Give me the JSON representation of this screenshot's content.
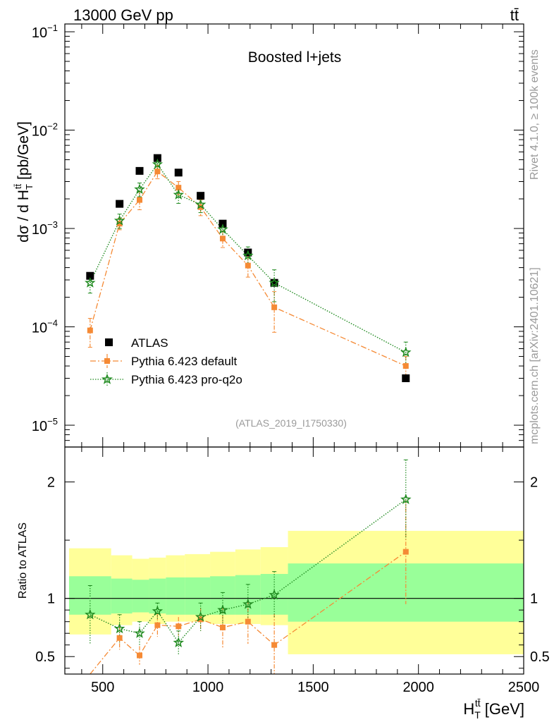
{
  "header": {
    "left": "13000 GeV pp",
    "right": "tt̄"
  },
  "side_labels": {
    "rivet": "Rivet 4.1.0, ≥ 100k events",
    "mcplots": "mcplots.cern.ch [arXiv:2401.10621]"
  },
  "chart_data": [
    {
      "name": "main",
      "type": "scatter",
      "title": "Boosted l+jets",
      "reference": "(ATLAS_2019_I1750330)",
      "ylabel": "dσ / d H_T^{tt̄} [pb/GeV]",
      "yscale": "log",
      "ylim": [
        6e-06,
        0.12
      ],
      "xlim": [
        320,
        2500
      ],
      "yticks": [
        {
          "value": 1e-05,
          "base": "10",
          "exp": "−5"
        },
        {
          "value": 0.0001,
          "base": "10",
          "exp": "−4"
        },
        {
          "value": 0.001,
          "base": "10",
          "exp": "−3"
        },
        {
          "value": 0.01,
          "base": "10",
          "exp": "−2"
        },
        {
          "value": 0.1,
          "base": "10",
          "exp": "−1"
        }
      ],
      "x": [
        440,
        580,
        675,
        760,
        860,
        965,
        1070,
        1190,
        1315,
        1940
      ],
      "series": [
        {
          "name": "ATLAS",
          "color": "#000000",
          "values": [
            0.00033,
            0.00178,
            0.00385,
            0.0052,
            0.0037,
            0.00215,
            0.00112,
            0.00057,
            0.00028,
            3e-05
          ]
        },
        {
          "name": "Pythia 6.423 default",
          "color": "#f58a35",
          "values": [
            9.2e-05,
            0.00112,
            0.00195,
            0.0038,
            0.0026,
            0.00165,
            0.00079,
            0.00042,
            0.000158,
            4e-05
          ],
          "errors": [
            3e-05,
            0.00015,
            0.0004,
            0.0006,
            0.0004,
            0.0003,
            0.00015,
            0.0001,
            7e-05,
            1e-05
          ]
        },
        {
          "name": "Pythia 6.423 pro-q2o",
          "color": "#1f8a1f",
          "values": [
            0.00028,
            0.0012,
            0.0025,
            0.0045,
            0.0022,
            0.00175,
            0.00098,
            0.00053,
            0.00028,
            5.5e-05
          ],
          "errors": [
            6e-05,
            0.0002,
            0.0004,
            0.0007,
            0.0004,
            0.0003,
            0.0002,
            0.00012,
            0.0001,
            1.5e-05
          ]
        }
      ]
    },
    {
      "name": "ratio",
      "type": "scatter",
      "ylabel": "Ratio to ATLAS",
      "xlabel": "H_T^{tt̄} [GeV]",
      "ylim": [
        0.35,
        2.3
      ],
      "xlim": [
        320,
        2500
      ],
      "yticks": [
        0.5,
        1,
        2
      ],
      "xticks": [
        500,
        1000,
        1500,
        2000,
        2500
      ],
      "bands": {
        "edges": [
          340,
          540,
          640,
          720,
          800,
          890,
          1010,
          1130,
          1250,
          1380,
          2500
        ],
        "yellow_low": [
          0.69,
          0.77,
          0.8,
          0.78,
          0.8,
          0.8,
          0.78,
          0.78,
          0.77,
          0.52
        ],
        "yellow_high": [
          1.43,
          1.37,
          1.34,
          1.35,
          1.37,
          1.38,
          1.4,
          1.42,
          1.44,
          1.58
        ],
        "green_low": [
          0.86,
          0.87,
          0.88,
          0.87,
          0.86,
          0.86,
          0.86,
          0.86,
          0.86,
          0.8
        ],
        "green_high": [
          1.19,
          1.17,
          1.16,
          1.17,
          1.18,
          1.18,
          1.19,
          1.2,
          1.21,
          1.3
        ]
      },
      "x": [
        440,
        580,
        675,
        760,
        860,
        965,
        1070,
        1190,
        1315,
        1940
      ],
      "series": [
        {
          "name": "Pythia 6.423 default",
          "color": "#f58a35",
          "values": [
            0.27,
            0.66,
            0.51,
            0.77,
            0.76,
            0.82,
            0.75,
            0.8,
            0.6,
            1.4
          ],
          "errors": [
            0.08,
            0.1,
            0.08,
            0.1,
            0.08,
            0.1,
            0.18,
            0.19,
            0.27,
            0.45
          ]
        },
        {
          "name": "Pythia 6.423 pro-q2o",
          "color": "#1f8a1f",
          "values": [
            0.86,
            0.74,
            0.7,
            0.89,
            0.62,
            0.84,
            0.9,
            0.95,
            1.03,
            1.85
          ],
          "errors": [
            0.25,
            0.12,
            0.1,
            0.07,
            0.1,
            0.12,
            0.15,
            0.17,
            0.2,
            0.34
          ]
        }
      ]
    }
  ]
}
